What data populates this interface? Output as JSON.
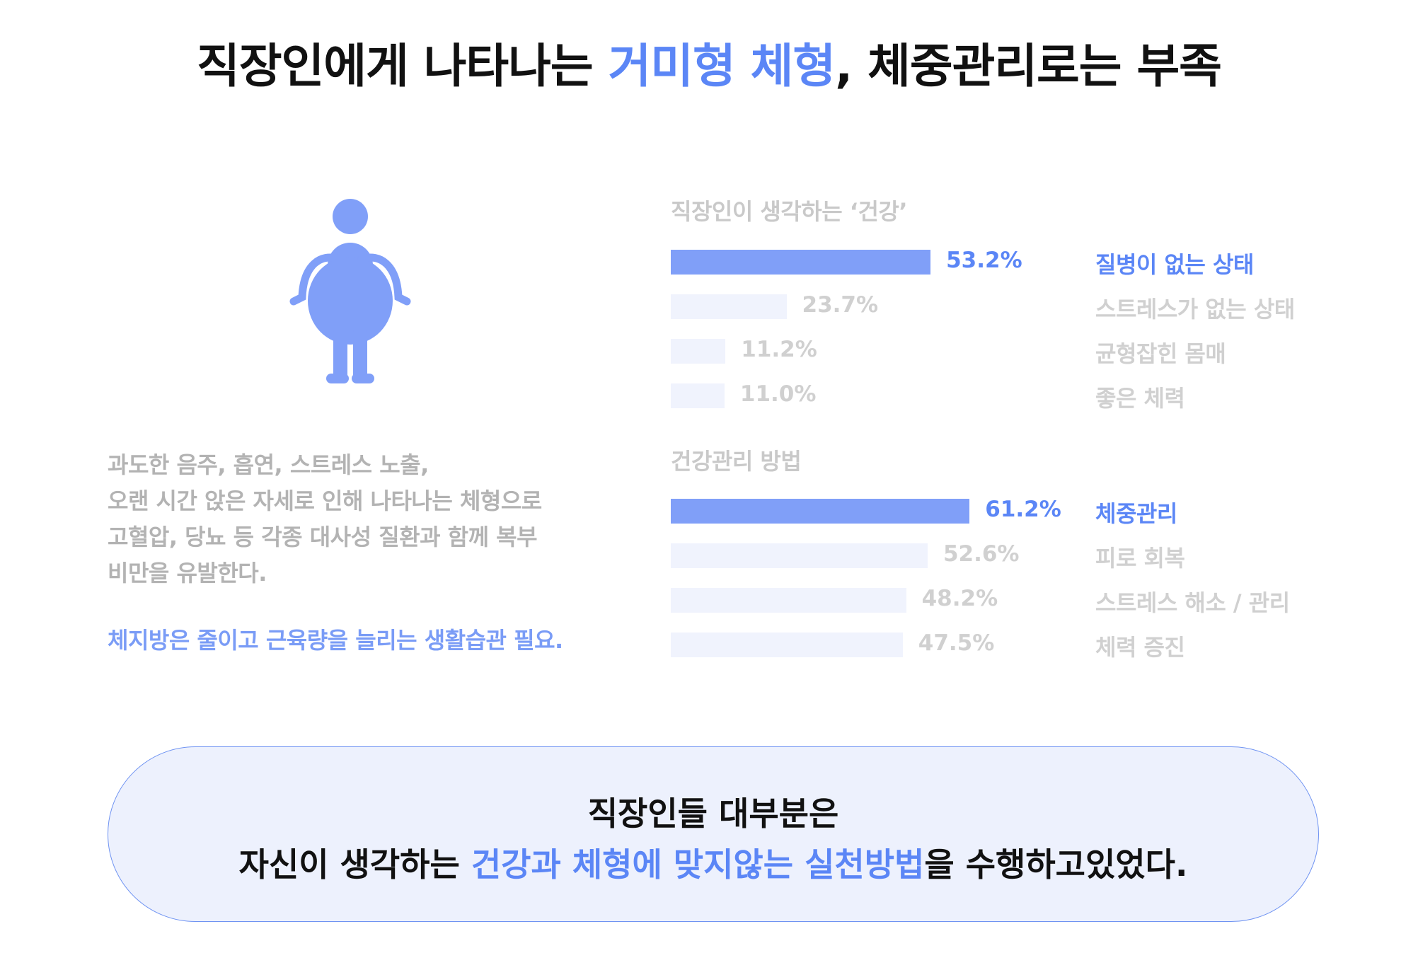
{
  "title": {
    "part1": "직장인에게 나타나는 ",
    "highlight": "거미형 체형",
    "part2": ", 체중관리로는 부족"
  },
  "description": {
    "lines": [
      "과도한 음주, 흡연, 스트레스 노출,",
      "오랜 시간 앉은 자세로 인해 나타나는 체형으로",
      "고혈압, 당뇨 등 각종 대사성 질환과 함께 복부",
      "비만을 유발한다."
    ],
    "emphasis": "체지방은 줄이고 근육량을 늘리는 생활습관 필요."
  },
  "colors": {
    "accent": "#5b86f6",
    "bar_primary": "#809ff8",
    "bar_muted": "#f0f3fd",
    "label_muted": "#d0d0d0",
    "figure": "#809ff8",
    "summary_bg": "#edf1fd",
    "summary_border": "#6f93f2"
  },
  "icon": "spider-body-type-person-icon",
  "chart_data": [
    {
      "type": "bar",
      "orientation": "horizontal",
      "title": "직장인이 생각하는 ‘건강’",
      "categories": [
        "질병이 없는 상태",
        "스트레스가 없는 상태",
        "균형잡힌 몸매",
        "좋은 체력"
      ],
      "values": [
        53.2,
        23.7,
        11.2,
        11.0
      ],
      "value_labels": [
        "53.2%",
        "23.7%",
        "11.2%",
        "11.0%"
      ],
      "highlight_index": 0,
      "unit": "%",
      "xlim": [
        0,
        100
      ],
      "grid": false
    },
    {
      "type": "bar",
      "orientation": "horizontal",
      "title": "건강관리 방법",
      "categories": [
        "체중관리",
        "피로 회복",
        "스트레스 해소 / 관리",
        "체력 증진"
      ],
      "values": [
        61.2,
        52.6,
        48.2,
        47.5
      ],
      "value_labels": [
        "61.2%",
        "52.6%",
        "48.2%",
        "47.5%"
      ],
      "highlight_index": 0,
      "unit": "%",
      "xlim": [
        0,
        100
      ],
      "grid": false
    }
  ],
  "summary": {
    "line1": "직장인들 대부분은",
    "line2_part1": "자신이 생각하는 ",
    "line2_highlight": "건강과 체형에 맞지않는 실천방법",
    "line2_part2": "을 수행하고있었다."
  }
}
